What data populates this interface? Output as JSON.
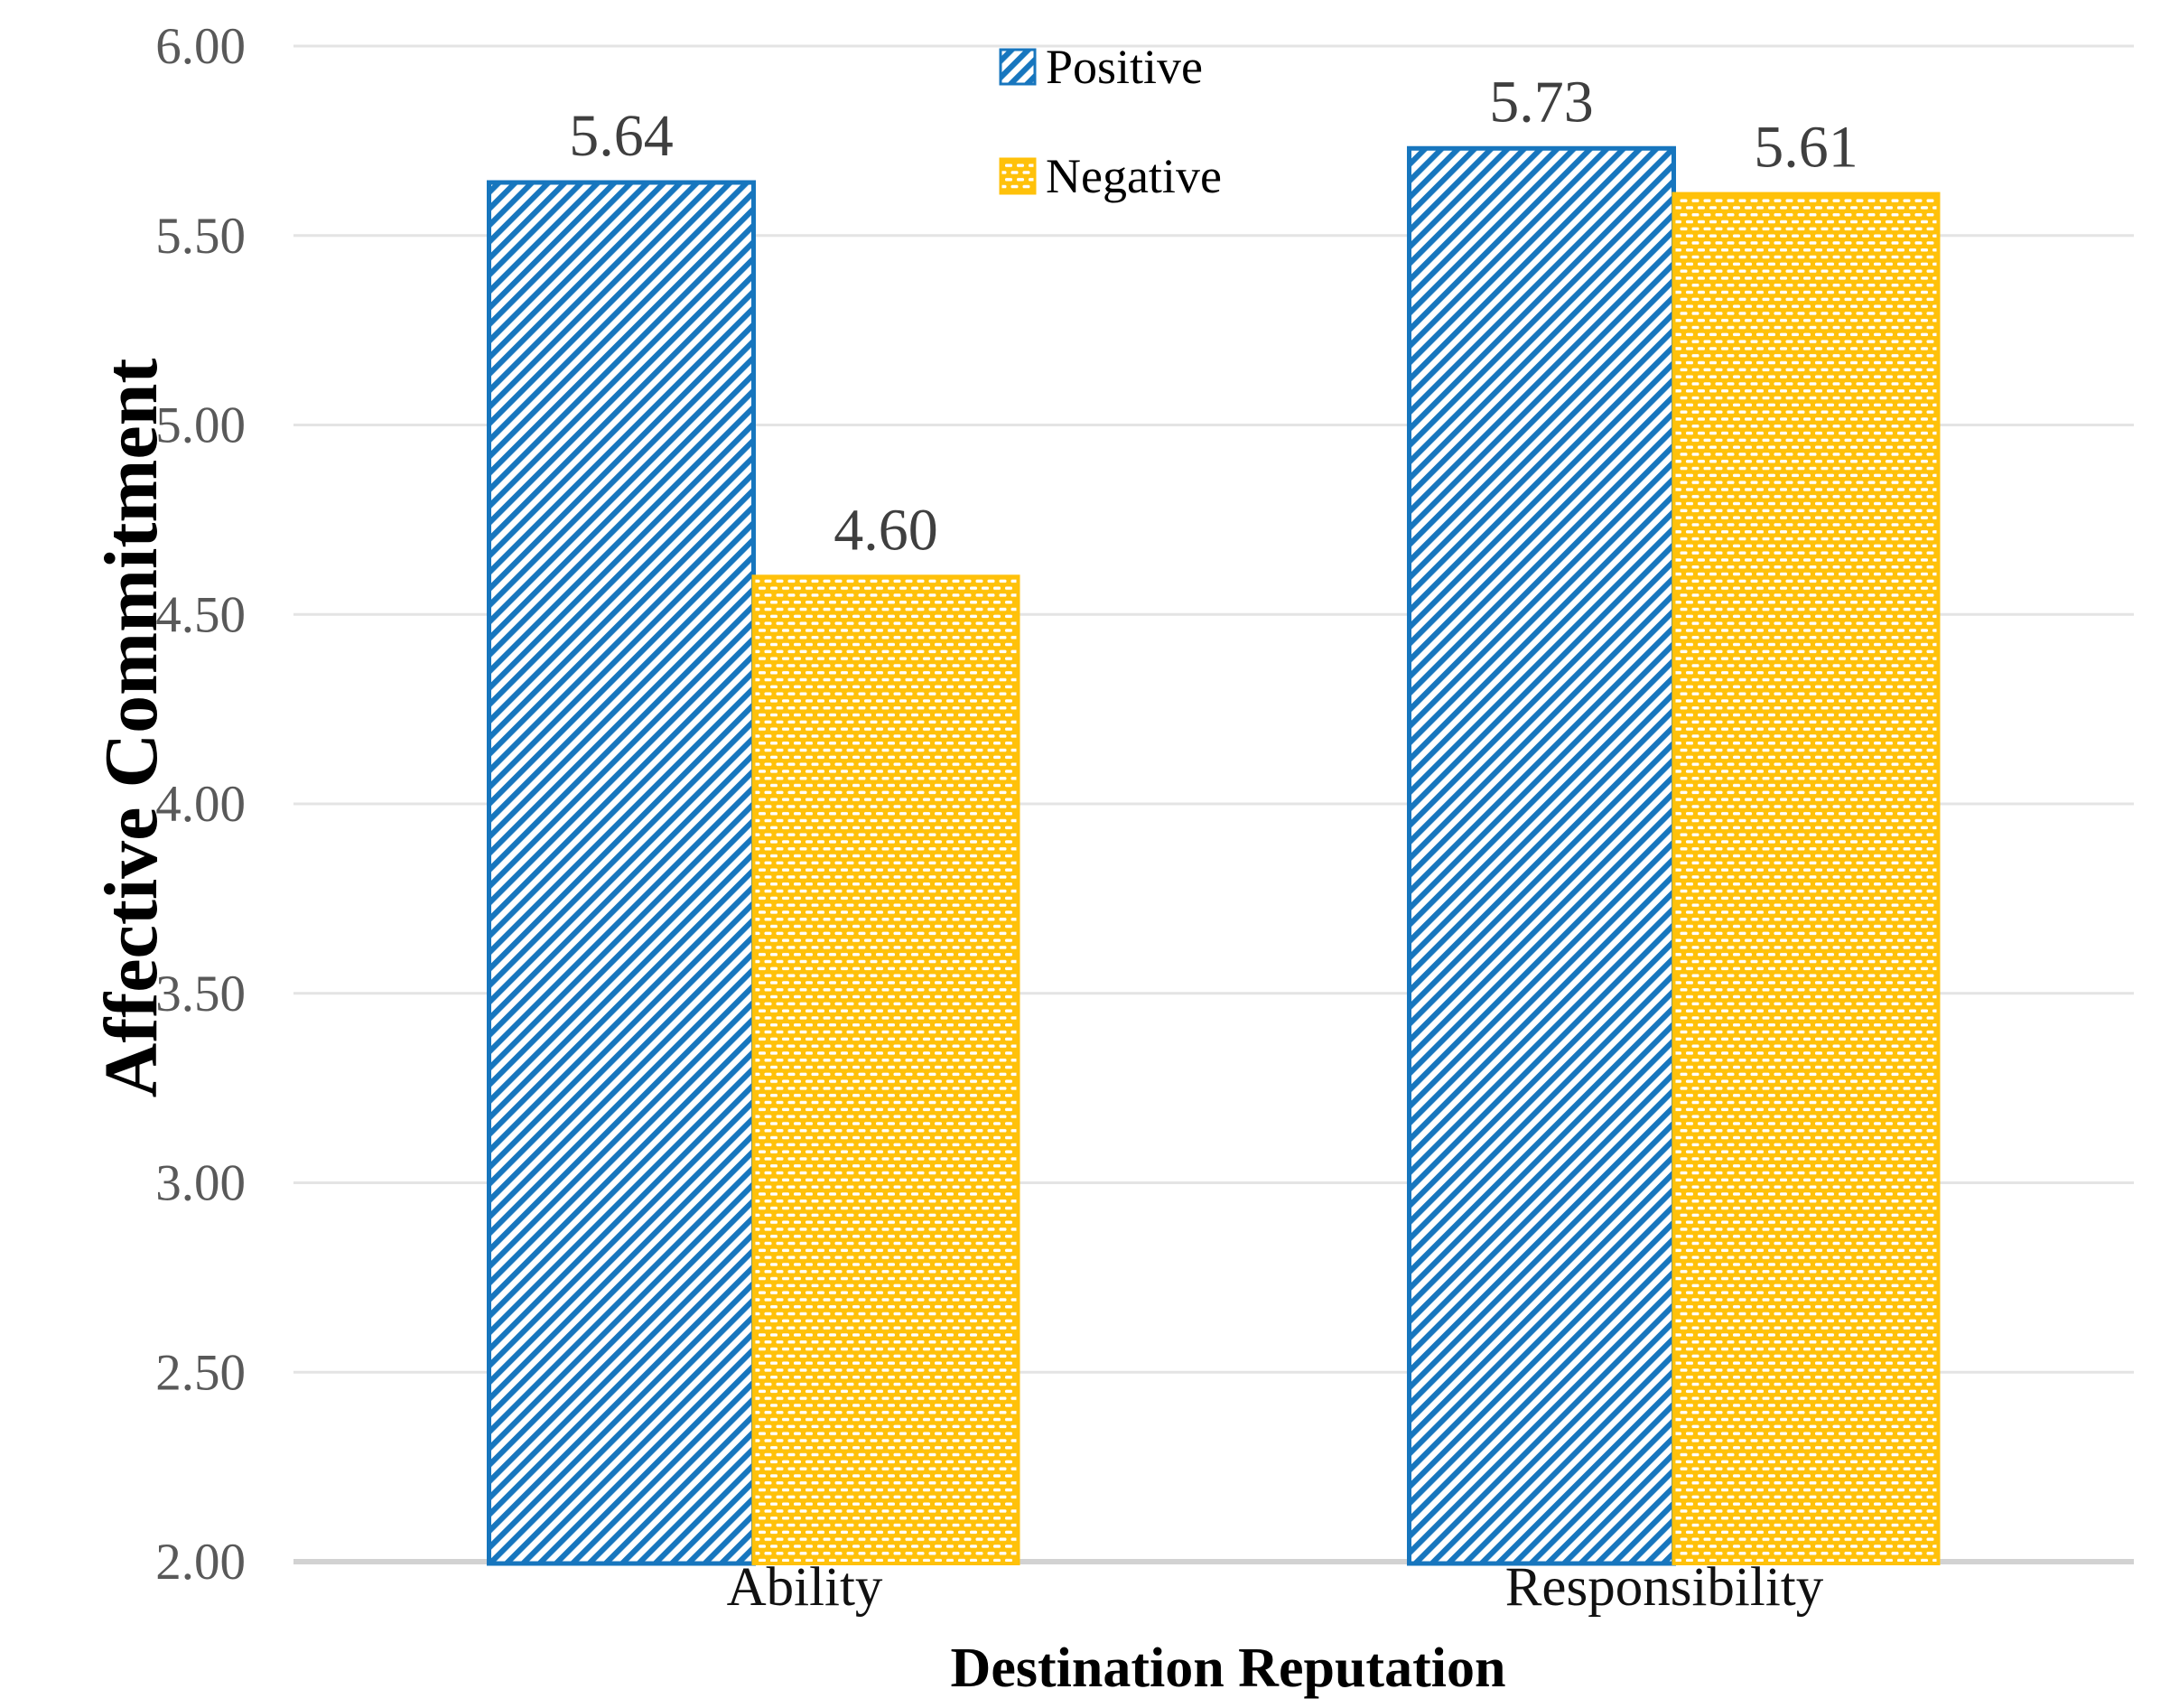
{
  "chart_data": {
    "type": "bar",
    "title": "",
    "categories": [
      "Ability",
      "Responsibility"
    ],
    "series": [
      {
        "name": "Positive",
        "values": [
          5.64,
          5.73
        ],
        "color": "#1776BE",
        "pattern": "diagonal-hatch"
      },
      {
        "name": "Negative",
        "values": [
          4.6,
          5.61
        ],
        "color": "#FFC10A",
        "pattern": "white-dots"
      }
    ],
    "xlabel": "Destination Reputation",
    "ylabel": "Affective Commitment",
    "ylim": [
      2.0,
      6.0
    ],
    "ytick_step": 0.5,
    "ytick_labels": [
      "2.00",
      "2.50",
      "3.00",
      "3.50",
      "4.00",
      "4.50",
      "5.00",
      "5.50",
      "6.00"
    ],
    "data_labels": [
      [
        "5.64",
        "5.73"
      ],
      [
        "4.60",
        "5.61"
      ]
    ],
    "grid": true,
    "legend": {
      "position": "top-center",
      "entries": [
        "Positive",
        "Negative"
      ]
    },
    "colors": {
      "grid": "#E4E4E4",
      "axis_line": "#D2D2D2",
      "tick_label": "#595959",
      "data_label": "#3F3F3F",
      "category_label": "#111111",
      "legend_text": "#000000",
      "background": "#FFFFFF"
    }
  }
}
